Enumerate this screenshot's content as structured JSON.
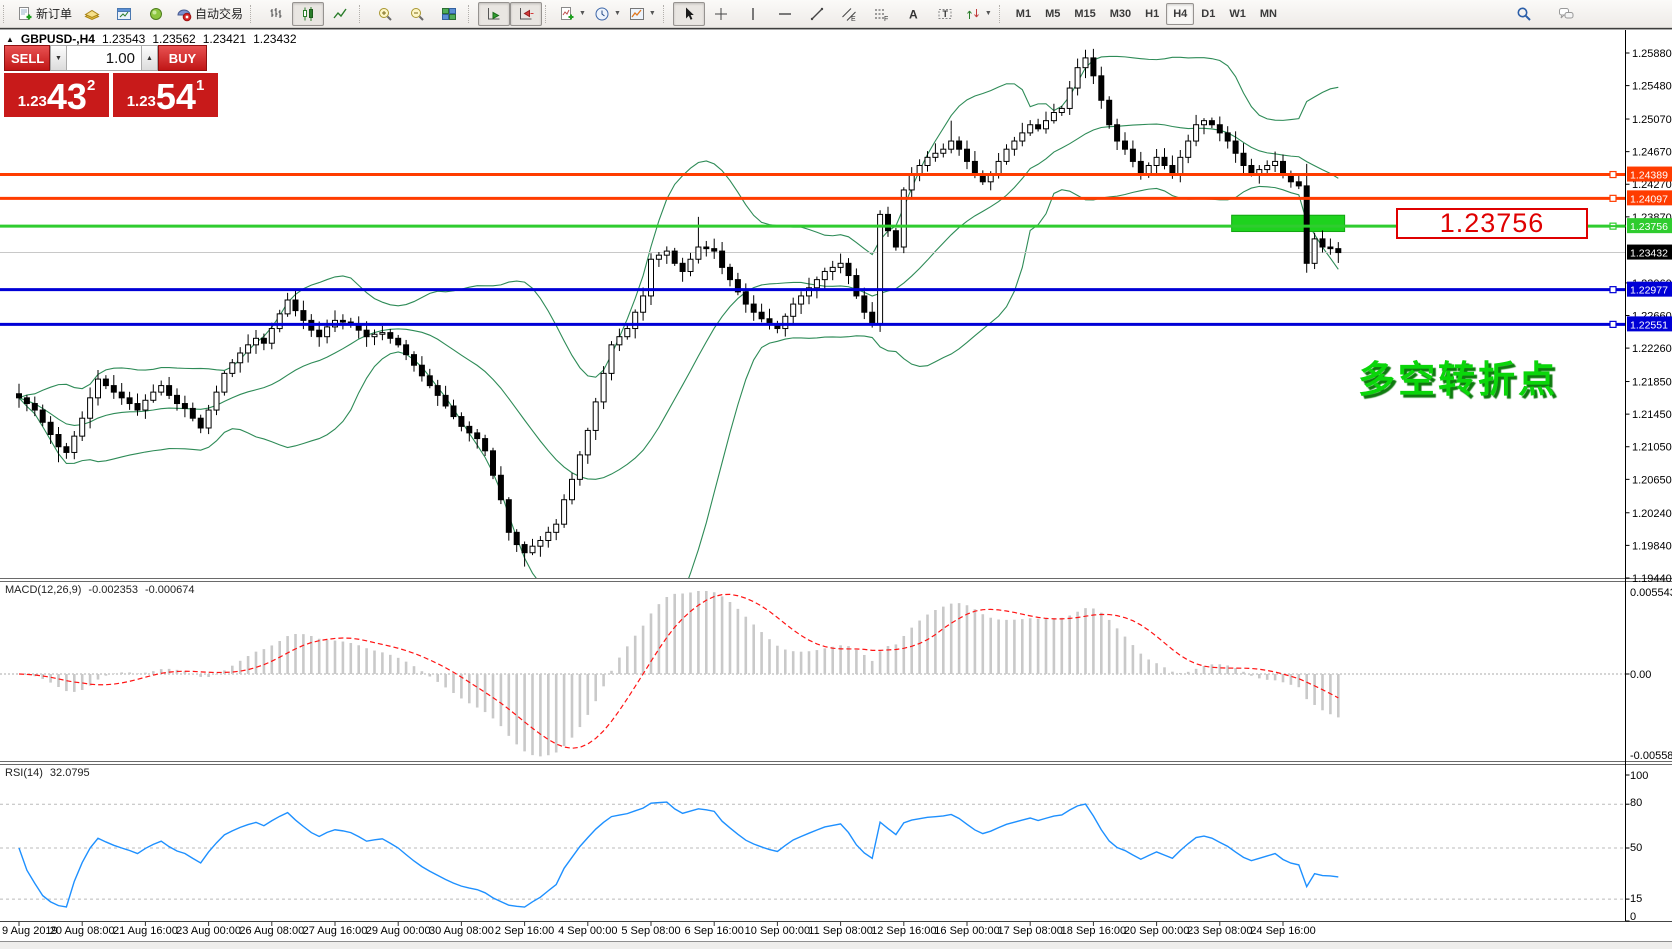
{
  "toolbar": {
    "groups": [
      {
        "items": [
          {
            "name": "new-order-button",
            "icon": "new-order",
            "label": "新订单"
          },
          {
            "name": "profile-button",
            "icon": "profile"
          },
          {
            "name": "market-watch-button",
            "icon": "market-watch"
          },
          {
            "name": "navigator-button",
            "icon": "navigator"
          },
          {
            "name": "auto-trading-button",
            "icon": "auto-trading",
            "label": "自动交易"
          }
        ]
      },
      {
        "items": [
          {
            "name": "bar-chart-button",
            "icon": "bar-chart"
          },
          {
            "name": "candlestick-button",
            "icon": "candles",
            "pressed": true
          },
          {
            "name": "line-chart-button",
            "icon": "line-chart"
          }
        ]
      },
      {
        "items": [
          {
            "name": "zoom-in-button",
            "icon": "zoom-in"
          },
          {
            "name": "zoom-out-button",
            "icon": "zoom-out"
          },
          {
            "name": "tile-windows-button",
            "icon": "tiles"
          }
        ]
      },
      {
        "items": [
          {
            "name": "auto-scroll-button",
            "icon": "auto-scroll",
            "pressed": true
          },
          {
            "name": "chart-shift-button",
            "icon": "chart-shift",
            "pressed": true
          }
        ]
      },
      {
        "items": [
          {
            "name": "indicators-button",
            "icon": "indicators",
            "dropdown": true
          },
          {
            "name": "periods-button",
            "icon": "clock",
            "dropdown": true
          },
          {
            "name": "templates-button",
            "icon": "template",
            "dropdown": true
          }
        ]
      },
      {
        "items": [
          {
            "name": "cursor-button",
            "icon": "cursor",
            "pressed": true
          },
          {
            "name": "crosshair-button",
            "icon": "crosshair"
          },
          {
            "name": "vertical-line-button",
            "icon": "vline"
          },
          {
            "name": "horizontal-line-button",
            "icon": "hline"
          },
          {
            "name": "trendline-button",
            "icon": "trendline"
          },
          {
            "name": "channel-button",
            "icon": "channel"
          },
          {
            "name": "fibonacci-button",
            "icon": "fibo"
          },
          {
            "name": "text-button",
            "icon": "text"
          },
          {
            "name": "label-button",
            "icon": "label"
          },
          {
            "name": "arrows-button",
            "icon": "arrows",
            "dropdown": true
          }
        ]
      }
    ],
    "right_items": [
      {
        "name": "search-button",
        "icon": "search"
      },
      {
        "name": "chat-button",
        "icon": "chat"
      }
    ]
  },
  "timeframes": {
    "items": [
      "M1",
      "M5",
      "M15",
      "M30",
      "H1",
      "H4",
      "D1",
      "W1",
      "MN"
    ],
    "active": "H4"
  },
  "symbol_info": {
    "symbol": "GBPUSD-,H4",
    "open": "1.23543",
    "high": "1.23562",
    "low": "1.23421",
    "close": "1.23432"
  },
  "one_click": {
    "sell_label": "SELL",
    "buy_label": "BUY",
    "volume": "1.00",
    "sell_price_small": "1.23",
    "sell_price_big": "43",
    "sell_price_sup": "2",
    "buy_price_small": "1.23",
    "buy_price_big": "54",
    "buy_price_sup": "1"
  },
  "price_axis": {
    "ticks": [
      "1.25880",
      "1.25480",
      "1.25070",
      "1.24670",
      "1.24270",
      "1.23870",
      "1.23060",
      "1.22660",
      "1.22260",
      "1.21850",
      "1.21450",
      "1.21050",
      "1.20650",
      "1.20240",
      "1.19840",
      "1.19440"
    ]
  },
  "hlines": [
    {
      "price": 1.24389,
      "label": "1.24389",
      "color": "#FF3C00"
    },
    {
      "price": 1.24097,
      "label": "1.24097",
      "color": "#FF3C00"
    },
    {
      "price": 1.23756,
      "label": "1.23756",
      "color": "#2FCC2F"
    },
    {
      "price": 1.22977,
      "label": "1.22977",
      "color": "#0000D6"
    },
    {
      "price": 1.22551,
      "label": "1.22551",
      "color": "#0000D6"
    }
  ],
  "current_price": {
    "price": 1.23432,
    "label": "1.23432",
    "bg": "#000000",
    "line_color": "#C8C8C8"
  },
  "annotations": {
    "price_callout": "1.23756",
    "turning_point": "多空转折点",
    "highlight_rect": {
      "bar_start": 153.5,
      "bar_end": 167.8,
      "price_top": 1.2389,
      "price_bottom": 1.2369,
      "color": "#1ED21E"
    }
  },
  "macd_panel": {
    "label": "MACD(12,26,9)",
    "value_main": "-0.002353",
    "value_signal": "-0.000674",
    "scale_top": "0.005543",
    "scale_zero": "0.00",
    "scale_bottom": "-0.005583"
  },
  "rsi_panel": {
    "label": "RSI(14)",
    "value": "32.0795",
    "scale": [
      "100",
      "80",
      "50",
      "15",
      "0"
    ],
    "levels": [
      80,
      50,
      15
    ]
  },
  "time_axis": {
    "labels": [
      "9 Aug 2019",
      "20 Aug 08:00",
      "21 Aug 16:00",
      "23 Aug 00:00",
      "26 Aug 08:00",
      "27 Aug 16:00",
      "29 Aug 00:00",
      "30 Aug 08:00",
      "2 Sep 16:00",
      "4 Sep 00:00",
      "5 Sep 08:00",
      "6 Sep 16:00",
      "10 Sep 00:00",
      "11 Sep 08:00",
      "12 Sep 16:00",
      "16 Sep 00:00",
      "17 Sep 08:00",
      "18 Sep 16:00",
      "20 Sep 00:00",
      "23 Sep 08:00",
      "24 Sep 16:00"
    ]
  },
  "chart_data": {
    "type": "candlestick",
    "symbol": "GBPUSD-",
    "timeframe": "H4",
    "bars": 168,
    "ylim": [
      1.1944,
      1.2616
    ],
    "closes": [
      1.2165,
      1.2158,
      1.215,
      1.2135,
      1.212,
      1.2105,
      1.2098,
      1.2118,
      1.214,
      1.2165,
      1.2188,
      1.218,
      1.2172,
      1.2165,
      1.2158,
      1.215,
      1.2162,
      1.2172,
      1.218,
      1.2168,
      1.2158,
      1.2152,
      1.214,
      1.2128,
      1.215,
      1.2172,
      1.2195,
      1.2208,
      1.222,
      1.223,
      1.2238,
      1.2232,
      1.225,
      1.2268,
      1.2285,
      1.2272,
      1.226,
      1.2248,
      1.224,
      1.2252,
      1.226,
      1.2258,
      1.2255,
      1.2248,
      1.224,
      1.2243,
      1.2245,
      1.2238,
      1.223,
      1.2218,
      1.2205,
      1.2192,
      1.218,
      1.2168,
      1.2155,
      1.2142,
      1.213,
      1.2122,
      1.2115,
      1.21,
      1.207,
      1.204,
      1.2,
      1.1985,
      1.1975,
      1.1983,
      1.199,
      1.2,
      1.201,
      1.204,
      1.2065,
      1.2095,
      1.2125,
      1.216,
      1.2195,
      1.223,
      1.224,
      1.225,
      1.227,
      1.229,
      1.2335,
      1.234,
      1.2345,
      1.233,
      1.232,
      1.2335,
      1.235,
      1.2348,
      1.2345,
      1.2325,
      1.231,
      1.2295,
      1.228,
      1.227,
      1.2262,
      1.2255,
      1.225,
      1.2265,
      1.228,
      1.229,
      1.23,
      1.231,
      1.232,
      1.2325,
      1.233,
      1.2315,
      1.229,
      1.227,
      1.2255,
      1.239,
      1.237,
      1.235,
      1.242,
      1.244,
      1.245,
      1.246,
      1.2465,
      1.247,
      1.248,
      1.247,
      1.2455,
      1.244,
      1.243,
      1.244,
      1.2455,
      1.247,
      1.248,
      1.249,
      1.25,
      1.2495,
      1.2505,
      1.2515,
      1.252,
      1.2545,
      1.257,
      1.2582,
      1.256,
      1.253,
      1.25,
      1.248,
      1.247,
      1.2455,
      1.244,
      1.245,
      1.246,
      1.245,
      1.244,
      1.246,
      1.248,
      1.25,
      1.2505,
      1.25,
      1.249,
      1.248,
      1.2465,
      1.245,
      1.244,
      1.2445,
      1.245,
      1.2455,
      1.244,
      1.243,
      1.2425,
      1.233,
      1.236,
      1.235,
      1.2348,
      1.23432
    ],
    "special_wicks": {
      "5": {
        "low": 1.2086
      },
      "64": {
        "low": 1.1958
      },
      "86": {
        "high": 1.2387
      },
      "109": {
        "low": 1.2253
      },
      "118": {
        "high": 1.2505
      },
      "135": {
        "high": 1.2592
      },
      "163": {
        "high": 1.2452
      }
    },
    "indicators": [
      "Bollinger Bands (20,2)",
      "MACD(12,26,9)",
      "RSI(14)"
    ],
    "colors": {
      "bollinger": "#2E8B57",
      "macd_hist": "#C9C9C9",
      "macd_signal": "#FF1414",
      "rsi": "#1E90FF",
      "bull": "#FFFFFF",
      "bear": "#000000",
      "outline": "#000000"
    }
  }
}
